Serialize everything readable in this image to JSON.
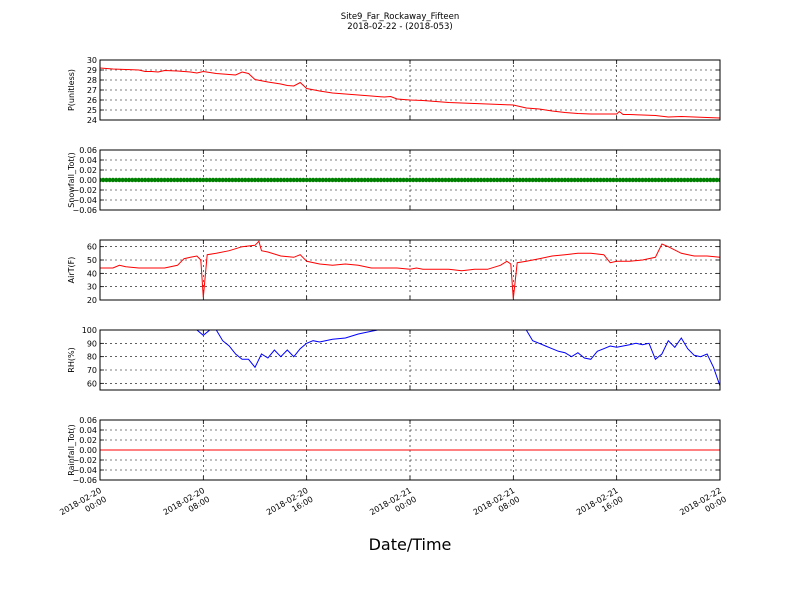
{
  "figure": {
    "title_line1": "Site9_Far_Rockaway_Fifteen",
    "title_line2": "2018-02-22 - (2018-053)",
    "xlabel": "Date/Time"
  },
  "x_axis": {
    "range_hours": [
      0,
      48
    ],
    "ticks": [
      {
        "hour": 0,
        "line1": "2018-02-20",
        "line2": "00:00"
      },
      {
        "hour": 8,
        "line1": "2018-02-20",
        "line2": "08:00"
      },
      {
        "hour": 16,
        "line1": "2018-02-20",
        "line2": "16:00"
      },
      {
        "hour": 24,
        "line1": "2018-02-21",
        "line2": "00:00"
      },
      {
        "hour": 32,
        "line1": "2018-02-21",
        "line2": "08:00"
      },
      {
        "hour": 40,
        "line1": "2018-02-21",
        "line2": "16:00"
      },
      {
        "hour": 48,
        "line1": "2018-02-22",
        "line2": "00:00"
      }
    ]
  },
  "chart_data": [
    {
      "type": "line",
      "ylabel": "P(unitless)",
      "ylim": [
        24,
        30
      ],
      "yticks": [
        "24",
        "25",
        "26",
        "27",
        "28",
        "29",
        "30"
      ],
      "grid": true,
      "series": [
        {
          "color": "#ff0000",
          "x": [
            0,
            1,
            2,
            3,
            3.5,
            4,
            4.5,
            5,
            6,
            7,
            7.5,
            8,
            9,
            10,
            10.5,
            11,
            11.5,
            12,
            13,
            14,
            14.5,
            15,
            15.5,
            16,
            17,
            18,
            19,
            20,
            21,
            22,
            22.5,
            23,
            24,
            25,
            26,
            27,
            28,
            29,
            30,
            31,
            32,
            33,
            34,
            35,
            36,
            37,
            38,
            39,
            40,
            40.2,
            40.5,
            41,
            42,
            43,
            44,
            45,
            46,
            47,
            48
          ],
          "y": [
            29.2,
            29.1,
            29.05,
            29.0,
            28.85,
            28.85,
            28.8,
            28.95,
            28.9,
            28.8,
            28.7,
            28.85,
            28.65,
            28.55,
            28.5,
            28.8,
            28.65,
            28.05,
            27.8,
            27.6,
            27.45,
            27.4,
            27.75,
            27.15,
            26.9,
            26.7,
            26.6,
            26.5,
            26.4,
            26.3,
            26.35,
            26.1,
            26.0,
            25.95,
            25.85,
            25.75,
            25.7,
            25.65,
            25.6,
            25.55,
            25.5,
            25.2,
            25.1,
            24.9,
            24.75,
            24.65,
            24.6,
            24.6,
            24.6,
            24.85,
            24.55,
            24.55,
            24.5,
            24.45,
            24.3,
            24.35,
            24.3,
            24.25,
            24.2
          ]
        }
      ]
    },
    {
      "type": "scatter",
      "ylabel": "Snowfall_Tot()",
      "ylim": [
        -0.06,
        0.06
      ],
      "yticks": [
        "−0.06",
        "−0.04",
        "−0.02",
        "0.00",
        "0.02",
        "0.04",
        "0.06"
      ],
      "grid": true,
      "series": [
        {
          "color": "#008000",
          "x_range": [
            0,
            48
          ],
          "x_step": 0.25,
          "constant_y": 0
        }
      ]
    },
    {
      "type": "line",
      "ylabel": "AirT(F)",
      "ylim": [
        20,
        65
      ],
      "yticks": [
        "20",
        "30",
        "40",
        "50",
        "60"
      ],
      "grid": true,
      "series": [
        {
          "color": "#ff0000",
          "x": [
            0,
            1,
            1.5,
            2,
            3,
            4,
            5,
            6,
            6.5,
            7,
            7.5,
            7.8,
            8.0,
            8.3,
            9,
            10,
            11,
            12,
            12.3,
            12.5,
            13,
            14,
            15,
            15.5,
            16,
            17,
            18,
            19,
            20,
            21,
            22,
            23,
            24,
            24.5,
            25,
            26,
            27,
            28,
            29,
            30,
            31,
            31.5,
            31.8,
            32.0,
            32.3,
            33,
            34,
            35,
            36,
            37,
            38,
            39,
            39.5,
            40,
            41,
            42,
            43,
            43.5,
            44,
            45,
            46,
            47,
            48
          ],
          "y": [
            44,
            44,
            46,
            45,
            44,
            44,
            44,
            46,
            51,
            52,
            53,
            50,
            22,
            54,
            55,
            57,
            60,
            61,
            64,
            57,
            56,
            53,
            52,
            54,
            49,
            47,
            46,
            47,
            46,
            44,
            44,
            44,
            43,
            44,
            43,
            43,
            43,
            42,
            43,
            43,
            46,
            49,
            47,
            21,
            48,
            49,
            51,
            53,
            54,
            55,
            55,
            54,
            48,
            49,
            49,
            50,
            52,
            62,
            60,
            55,
            53,
            53,
            52
          ]
        }
      ]
    },
    {
      "type": "line",
      "ylabel": "RH(%)",
      "ylim": [
        55,
        100
      ],
      "yticks": [
        "60",
        "70",
        "80",
        "90",
        "100"
      ],
      "grid": true,
      "series": [
        {
          "color": "#0000ff",
          "x": [
            7.5,
            8,
            8.5,
            9,
            9.5,
            10,
            10.5,
            11,
            11.5,
            12,
            12.5,
            13,
            13.5,
            14,
            14.5,
            15,
            15.5,
            16,
            16.5,
            17,
            18,
            19,
            20,
            21,
            21.5,
            null,
            33,
            33.5,
            34,
            34.5,
            35,
            35.5,
            36,
            36.5,
            37,
            37.5,
            38,
            38.5,
            39,
            39.5,
            40,
            40.5,
            41,
            41.5,
            42,
            42.5,
            43,
            43.5,
            44,
            44.5,
            45,
            45.5,
            46,
            46.5,
            47,
            47.5,
            48
          ],
          "y": [
            100,
            96,
            100,
            100,
            92,
            88,
            82,
            78,
            78,
            72,
            82,
            79,
            85,
            80,
            85,
            80,
            86,
            90,
            92,
            91,
            93,
            94,
            97,
            99,
            100,
            null,
            100,
            92,
            90,
            88,
            86,
            84,
            83,
            80,
            83,
            79,
            78,
            84,
            86,
            88,
            87,
            88,
            89,
            90,
            89,
            90,
            78,
            82,
            92,
            87,
            94,
            86,
            81,
            80,
            82,
            72,
            58
          ]
        }
      ]
    },
    {
      "type": "line",
      "ylabel": "Rainfall_Tot()",
      "ylim": [
        -0.06,
        0.06
      ],
      "yticks": [
        "−0.06",
        "−0.04",
        "−0.02",
        "0.00",
        "0.02",
        "0.04",
        "0.06"
      ],
      "grid": true,
      "series": [
        {
          "color": "#ff0000",
          "x": [
            0,
            48
          ],
          "y": [
            0,
            0
          ]
        }
      ]
    }
  ]
}
